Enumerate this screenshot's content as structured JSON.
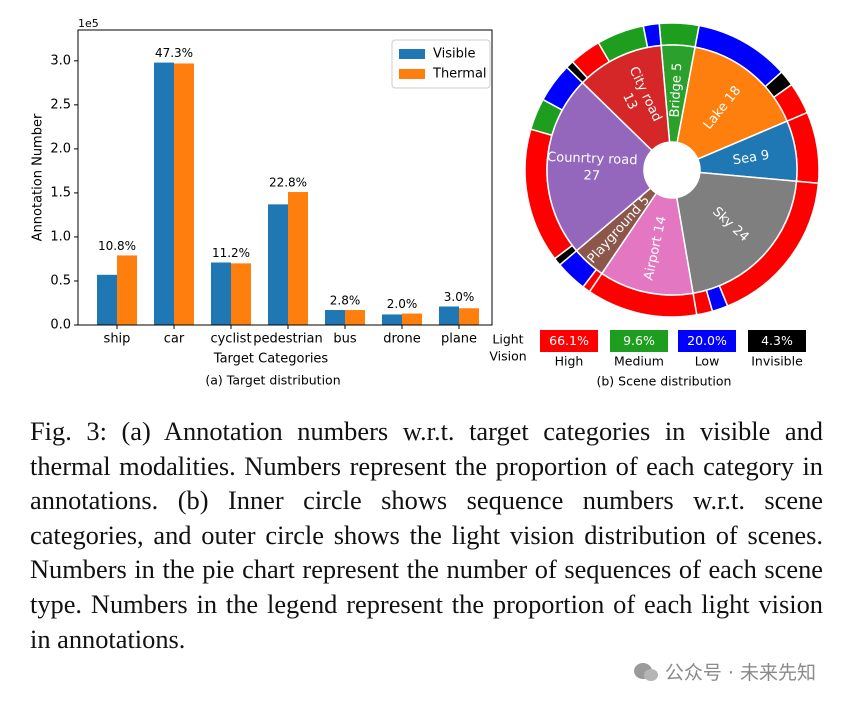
{
  "chart_data": [
    {
      "type": "bar",
      "title": "(a) Target distribution",
      "xlabel": "Target Categories",
      "ylabel": "Annotation Number",
      "y_offset_label": "1e5",
      "categories": [
        "ship",
        "car",
        "cyclist",
        "pedestrian",
        "bus",
        "drone",
        "plane"
      ],
      "series": [
        {
          "name": "Visible",
          "color": "#1f77b4",
          "values": [
            0.57,
            2.98,
            0.71,
            1.37,
            0.17,
            0.12,
            0.21
          ]
        },
        {
          "name": "Thermal",
          "color": "#ff7f0e",
          "values": [
            0.79,
            2.97,
            0.7,
            1.51,
            0.17,
            0.13,
            0.19
          ]
        }
      ],
      "proportion_labels": [
        "10.8%",
        "47.3%",
        "11.2%",
        "22.8%",
        "2.8%",
        "2.0%",
        "3.0%"
      ],
      "ylim": [
        0,
        3.35
      ],
      "yticks": [
        {
          "value": 0,
          "label": "0.0"
        },
        {
          "value": 0.5,
          "label": "0.5"
        },
        {
          "value": 1,
          "label": "1.0"
        },
        {
          "value": 1.5,
          "label": "1.5"
        },
        {
          "value": 2,
          "label": "2.0"
        },
        {
          "value": 2.5,
          "label": "2.5"
        },
        {
          "value": 3,
          "label": "3.0"
        }
      ],
      "legend": "upper right"
    },
    {
      "type": "donut",
      "title": "(b) Scene distribution",
      "inner": {
        "labels": [
          [
            "Bridge 5"
          ],
          [
            "Lake 18"
          ],
          [
            "Sea 9"
          ],
          [
            "Sky 24"
          ],
          [
            "Airport 14"
          ],
          [
            "Playground 5"
          ],
          [
            "Counrtry road",
            "27"
          ],
          [
            "City road",
            "13"
          ]
        ],
        "values": [
          5,
          18,
          9,
          24,
          14,
          5,
          27,
          13
        ],
        "colors": [
          "#2ca02c",
          "#ff7f0e",
          "#1f77b4",
          "#7f7f7f",
          "#e377c2",
          "#8c564b",
          "#9467bd",
          "#d62728"
        ]
      },
      "outer": {
        "values": [
          5,
          12,
          2,
          4,
          9,
          20,
          2,
          2,
          14,
          1,
          4,
          1,
          17,
          4,
          5,
          1,
          4,
          6,
          2
        ],
        "levels": [
          "Medium",
          "Low",
          "Invisible",
          "High",
          "High",
          "High",
          "Low",
          "High",
          "High",
          "High",
          "Low",
          "Invisible",
          "High",
          "Medium",
          "Low",
          "Invisible",
          "High",
          "Medium",
          "Low"
        ]
      },
      "legend_title": [
        "Light",
        "Vision"
      ],
      "legend": [
        {
          "name": "High",
          "color": "#ff0000",
          "label": "66.1%"
        },
        {
          "name": "Medium",
          "color": "#1e9e1e",
          "label": "9.6%"
        },
        {
          "name": "Low",
          "color": "#0000ff",
          "label": "20.0%"
        },
        {
          "name": "Invisible",
          "color": "#000000",
          "label": "4.3%"
        }
      ]
    }
  ],
  "caption": "Fig. 3: (a) Annotation numbers w.r.t. target categories in visible and thermal modalities. Numbers represent the proportion of each category in annotations. (b) Inner circle shows sequence numbers w.r.t. scene categories, and outer circle shows the light vision distribution of scenes. Numbers in the pie chart represent the number of sequences of each scene type. Numbers in the legend represent the proportion of each light vision in annotations.",
  "watermark": "公众号 · 未来先知"
}
